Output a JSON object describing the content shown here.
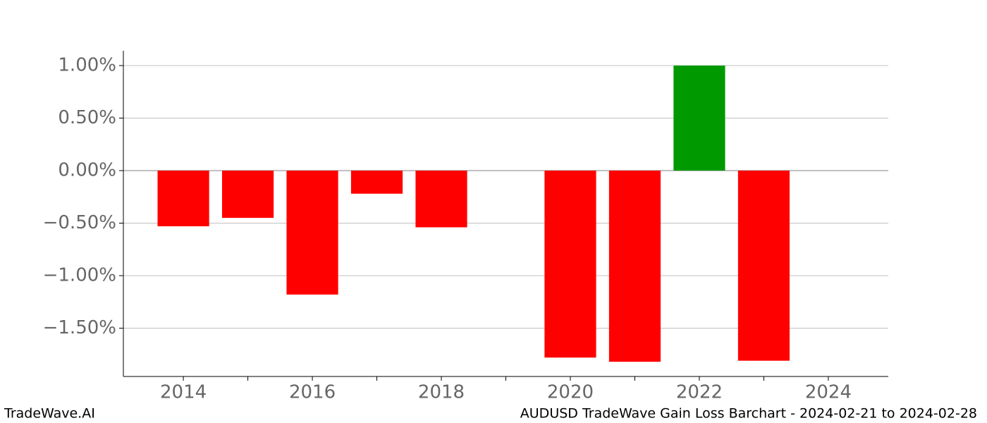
{
  "chart_data": {
    "type": "bar",
    "title": "AUDUSD TradeWave Gain Loss Barchart - 2024-02-21 to 2024-02-28",
    "brand": "TradeWave.AI",
    "x": [
      2014,
      2015,
      2016,
      2017,
      2018,
      2020,
      2021,
      2022,
      2023
    ],
    "values": [
      -0.53,
      -0.45,
      -1.18,
      -0.22,
      -0.54,
      -1.78,
      -1.82,
      1.0,
      -1.81
    ],
    "positive_color": "#009900",
    "negative_color": "#ff0000",
    "xlim": [
      2013.07,
      2024.93
    ],
    "xticks": [
      2014,
      2016,
      2018,
      2020,
      2022,
      2024
    ],
    "xminorticks": [
      2015,
      2017,
      2019,
      2021,
      2023
    ],
    "ylim": [
      -1.96,
      1.141
    ],
    "yticks": [
      {
        "value": -1.5,
        "label": "−1.50%"
      },
      {
        "value": -1.0,
        "label": "−1.00%"
      },
      {
        "value": -0.5,
        "label": "−0.50%"
      },
      {
        "value": 0,
        "label": "0.00%"
      },
      {
        "value": 0.5,
        "label": "0.50%"
      },
      {
        "value": 1.0,
        "label": "1.00%"
      }
    ],
    "grid": true
  }
}
